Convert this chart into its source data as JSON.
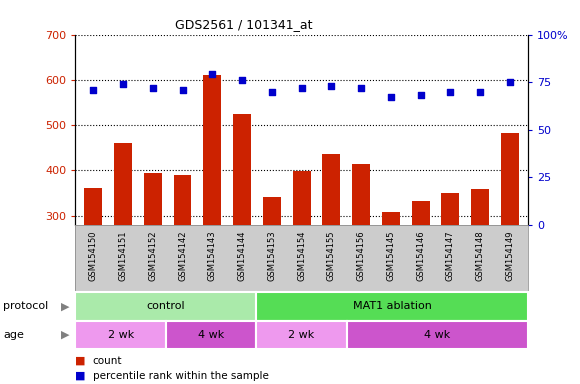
{
  "title": "GDS2561 / 101341_at",
  "samples": [
    "GSM154150",
    "GSM154151",
    "GSM154152",
    "GSM154142",
    "GSM154143",
    "GSM154144",
    "GSM154153",
    "GSM154154",
    "GSM154155",
    "GSM154156",
    "GSM154145",
    "GSM154146",
    "GSM154147",
    "GSM154148",
    "GSM154149"
  ],
  "count_values": [
    360,
    460,
    395,
    390,
    610,
    525,
    342,
    398,
    435,
    415,
    308,
    333,
    350,
    358,
    483
  ],
  "percentile_values": [
    71,
    74,
    72,
    71,
    79,
    76,
    70,
    72,
    73,
    72,
    67,
    68,
    70,
    70,
    75
  ],
  "ylim_left": [
    280,
    700
  ],
  "ylim_right": [
    0,
    100
  ],
  "yticks_left": [
    300,
    400,
    500,
    600,
    700
  ],
  "yticks_right": [
    0,
    25,
    50,
    75,
    100
  ],
  "bar_color": "#cc2200",
  "dot_color": "#0000cc",
  "bg_color": "#cccccc",
  "protocol_groups": [
    {
      "label": "control",
      "start": 0,
      "end": 6,
      "color": "#aaeaaa"
    },
    {
      "label": "MAT1 ablation",
      "start": 6,
      "end": 15,
      "color": "#55dd55"
    }
  ],
  "age_groups": [
    {
      "label": "2 wk",
      "start": 0,
      "end": 3,
      "color": "#ee99ee"
    },
    {
      "label": "4 wk",
      "start": 3,
      "end": 6,
      "color": "#cc55cc"
    },
    {
      "label": "2 wk",
      "start": 6,
      "end": 9,
      "color": "#ee99ee"
    },
    {
      "label": "4 wk",
      "start": 9,
      "end": 15,
      "color": "#cc55cc"
    }
  ],
  "legend_count_label": "count",
  "legend_pct_label": "percentile rank within the sample",
  "protocol_label": "protocol",
  "age_label": "age"
}
